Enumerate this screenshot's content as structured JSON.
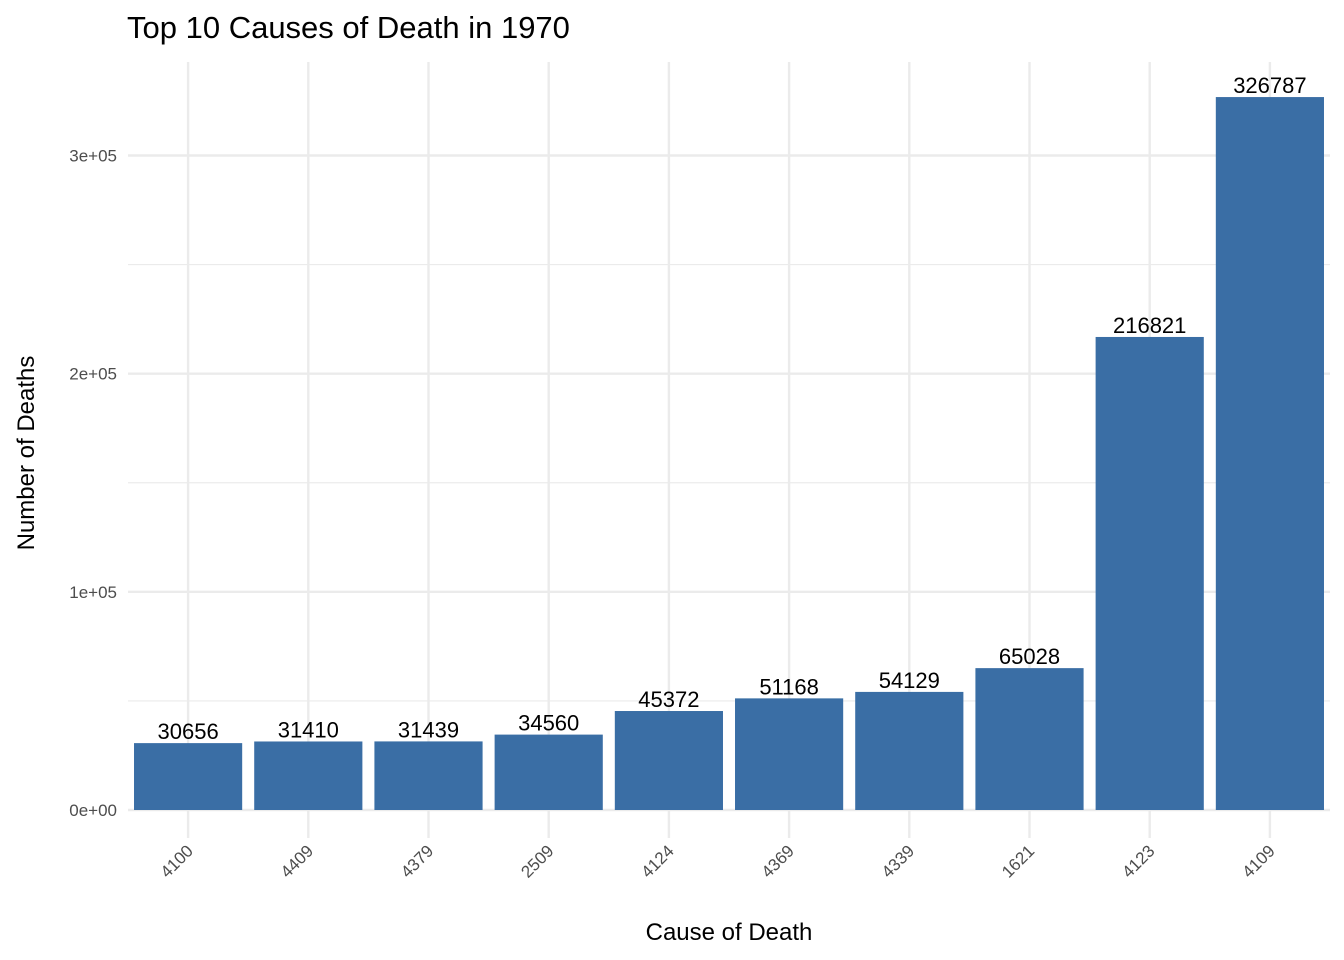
{
  "chart_data": {
    "type": "bar",
    "title": "Top 10 Causes of Death in 1970",
    "xlabel": "Cause of Death",
    "ylabel": "Number of Deaths",
    "categories": [
      "4100",
      "4409",
      "4379",
      "2509",
      "4124",
      "4369",
      "4339",
      "1621",
      "4123",
      "4109"
    ],
    "values": [
      30656,
      31410,
      31439,
      34560,
      45372,
      51168,
      54129,
      65028,
      216821,
      326787
    ],
    "data_labels": [
      "30656",
      "31410",
      "31439",
      "34560",
      "45372",
      "51168",
      "54129",
      "65028",
      "216821",
      "326787"
    ],
    "yticks": [
      0,
      100000,
      200000,
      300000
    ],
    "ytick_labels": [
      "0e+00",
      "1e+05",
      "2e+05",
      "3e+05"
    ],
    "ylim": [
      -15000,
      343000
    ],
    "grid": true,
    "legend": "none",
    "bar_color": "#3A6EA5",
    "gridline_color": "#EBEBEB"
  }
}
